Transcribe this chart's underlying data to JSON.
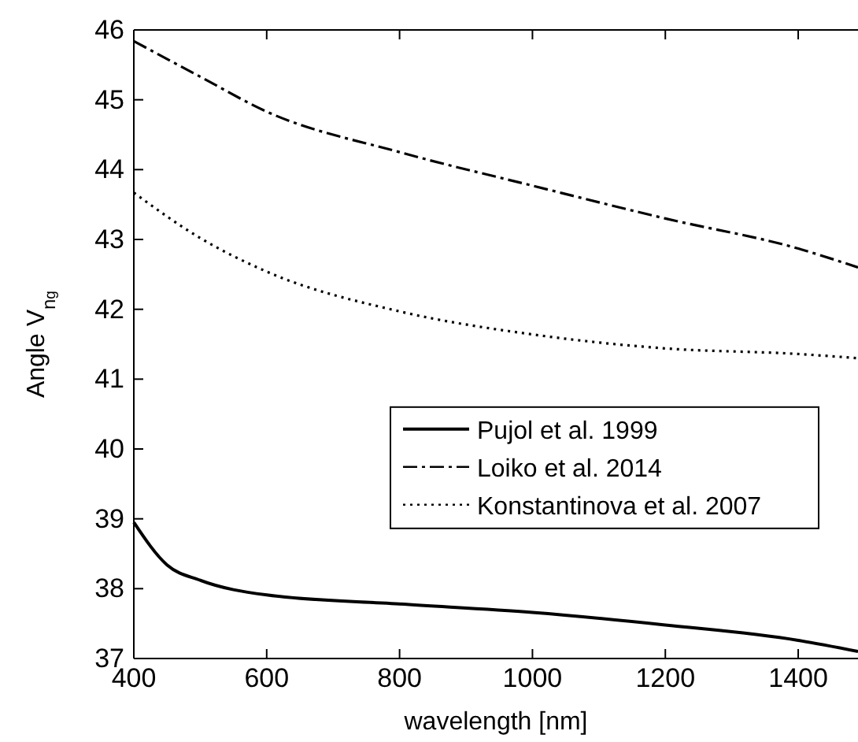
{
  "chart_data": {
    "type": "line",
    "xlabel": "wavelength [nm]",
    "ylabel": "Angle V$_{n}$$_{g}$",
    "xlim": [
      400,
      1490
    ],
    "ylim": [
      37,
      46
    ],
    "xticks": [
      400,
      600,
      800,
      1000,
      1200,
      1400
    ],
    "yticks": [
      37,
      38,
      39,
      40,
      41,
      42,
      43,
      44,
      45,
      46
    ],
    "grid": false,
    "legend": "right",
    "marker": "none",
    "series": [
      {
        "name": "Pujol et al. 1999",
        "color": "#000000",
        "line_style": "solid",
        "x": [
          400,
          450,
          500,
          600,
          800,
          1000,
          1200,
          1400,
          1490
        ],
        "values": [
          38.95,
          38.34,
          38.12,
          37.91,
          37.78,
          37.66,
          37.48,
          37.26,
          37.1
        ]
      },
      {
        "name": "Loiko et al. 2014",
        "color": "#000000",
        "line_style": "dashdot",
        "x": [
          400,
          500,
          600,
          800,
          1000,
          1200,
          1400,
          1490
        ],
        "values": [
          45.84,
          45.33,
          44.83,
          44.25,
          43.77,
          43.3,
          42.87,
          42.6
        ]
      },
      {
        "name": "Konstantinova et al. 2007",
        "color": "#000000",
        "line_style": "dotted",
        "x": [
          400,
          500,
          600,
          800,
          1000,
          1200,
          1400,
          1490
        ],
        "values": [
          43.67,
          43.02,
          42.54,
          41.97,
          41.64,
          41.44,
          41.36,
          41.3
        ]
      }
    ]
  }
}
